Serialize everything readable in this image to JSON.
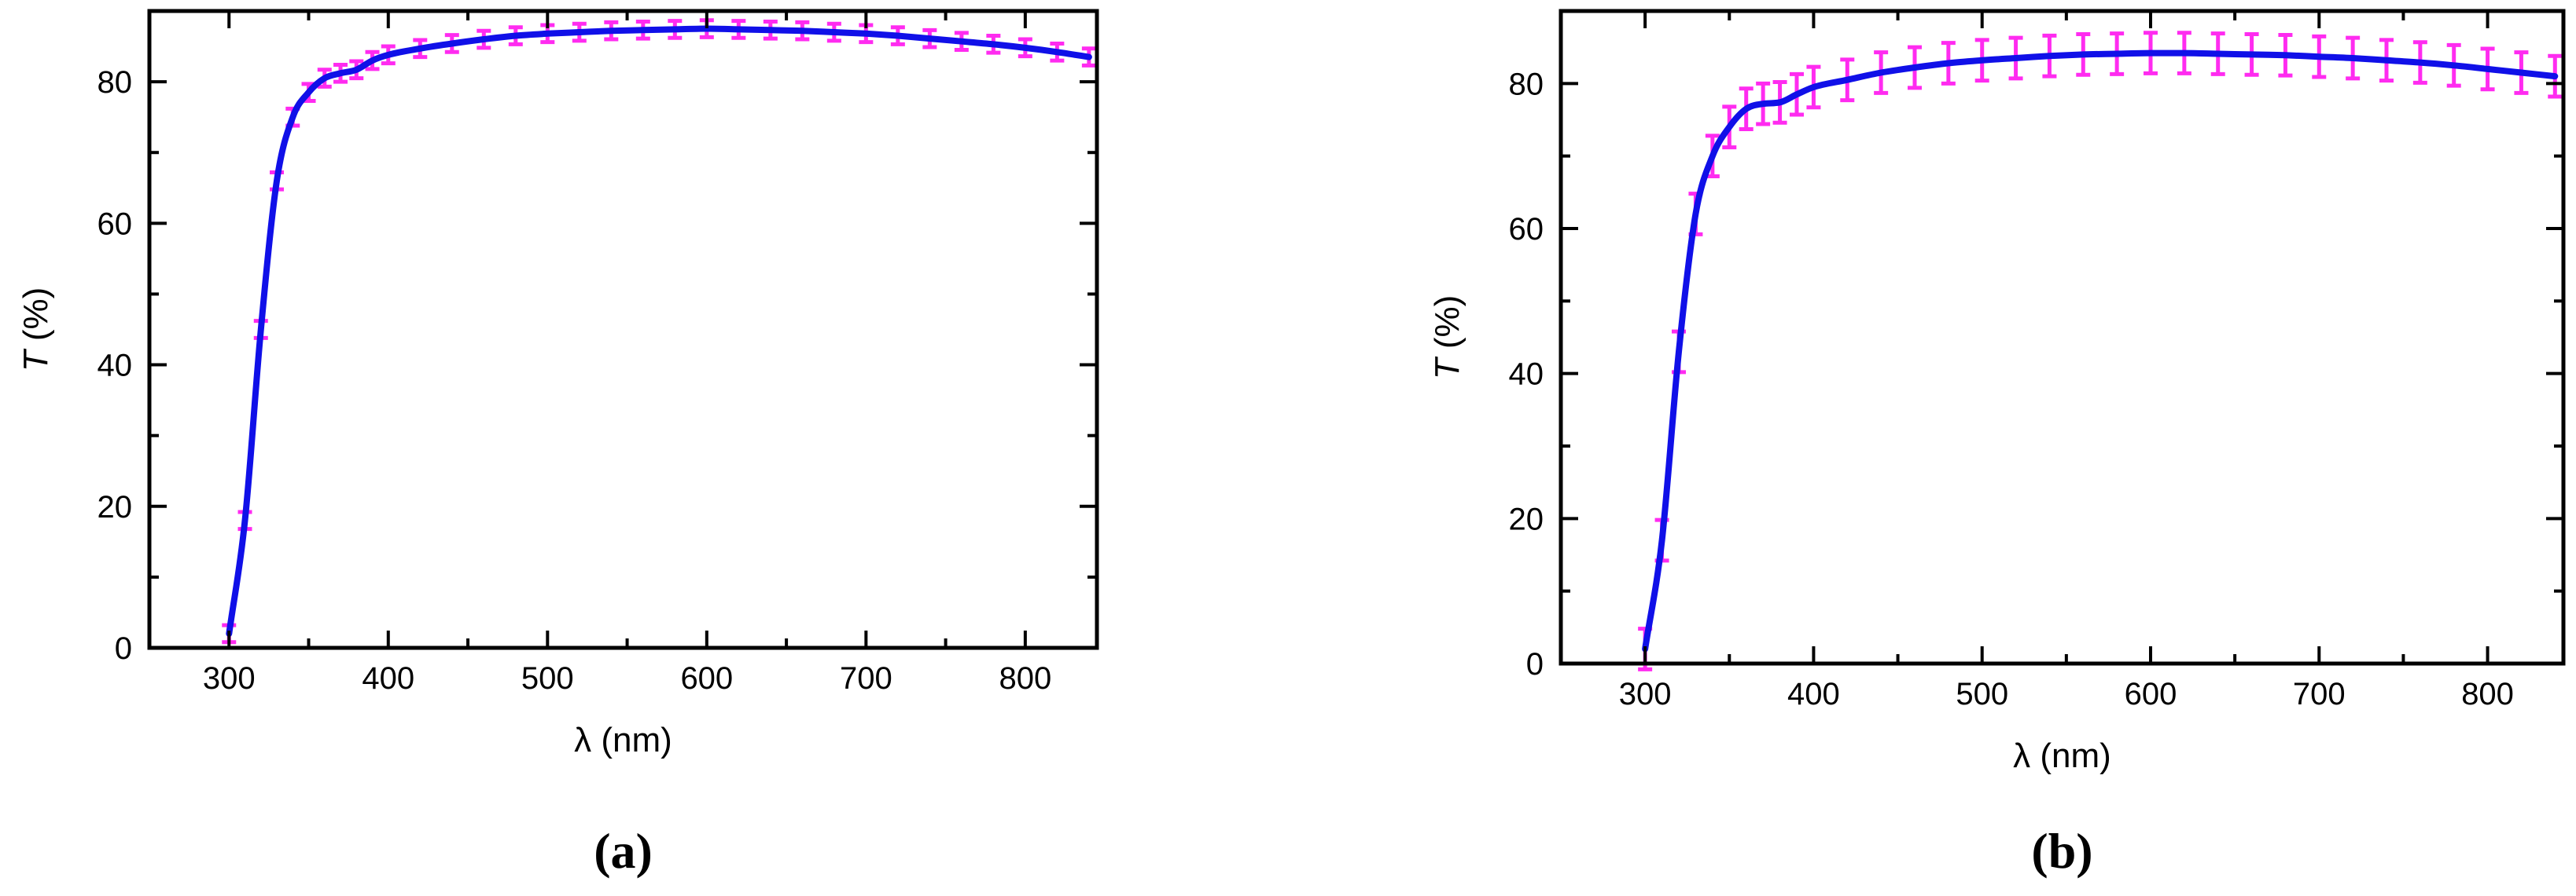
{
  "chart_data": [
    {
      "type": "line",
      "panel_label": "(a)",
      "xlabel": "λ (nm)",
      "ylabel_symbol": "T",
      "ylabel_unit": " (%)",
      "xlim": [
        250,
        845
      ],
      "ylim": [
        0,
        90
      ],
      "x_ticks": [
        300,
        400,
        500,
        600,
        700,
        800
      ],
      "y_ticks": [
        0,
        20,
        40,
        60,
        80
      ],
      "grid": false,
      "colors": {
        "line": "#1010e8",
        "error_bar": "#ff2bf0",
        "axes": "#000000"
      },
      "series": [
        {
          "x": [
            300,
            310,
            320,
            330,
            340,
            350,
            360,
            370,
            380,
            390,
            400,
            420,
            440,
            460,
            480,
            500,
            520,
            540,
            560,
            580,
            600,
            620,
            640,
            660,
            680,
            700,
            720,
            740,
            760,
            780,
            800,
            820,
            840
          ],
          "y": [
            2,
            18,
            45,
            66,
            75,
            78.5,
            80.5,
            81.2,
            81.7,
            83,
            83.8,
            84.7,
            85.4,
            86,
            86.5,
            86.8,
            87,
            87.2,
            87.3,
            87.4,
            87.5,
            87.4,
            87.3,
            87.2,
            87,
            86.8,
            86.5,
            86.1,
            85.7,
            85.3,
            84.8,
            84.2,
            83.5
          ],
          "error": 1.2
        }
      ]
    },
    {
      "type": "line",
      "panel_label": "(b)",
      "xlabel": "λ (nm)",
      "ylabel_symbol": "T",
      "ylabel_unit": " (%)",
      "xlim": [
        250,
        845
      ],
      "ylim": [
        0,
        90
      ],
      "x_ticks": [
        300,
        400,
        500,
        600,
        700,
        800
      ],
      "y_ticks": [
        0,
        20,
        40,
        60,
        80
      ],
      "grid": false,
      "colors": {
        "line": "#1010e8",
        "error_bar": "#ff2bf0",
        "axes": "#000000"
      },
      "series": [
        {
          "x": [
            300,
            310,
            320,
            330,
            340,
            350,
            360,
            370,
            380,
            390,
            400,
            420,
            440,
            460,
            480,
            500,
            520,
            540,
            560,
            580,
            600,
            620,
            640,
            660,
            680,
            700,
            720,
            740,
            760,
            780,
            800,
            820,
            840
          ],
          "y": [
            2,
            17,
            43,
            62,
            70,
            74,
            76.5,
            77.2,
            77.4,
            78.5,
            79.5,
            80.5,
            81.5,
            82.2,
            82.8,
            83.2,
            83.5,
            83.8,
            84,
            84.1,
            84.2,
            84.2,
            84.1,
            84,
            83.9,
            83.7,
            83.5,
            83.2,
            82.9,
            82.5,
            82,
            81.5,
            81
          ],
          "error": 2.8
        }
      ]
    }
  ]
}
